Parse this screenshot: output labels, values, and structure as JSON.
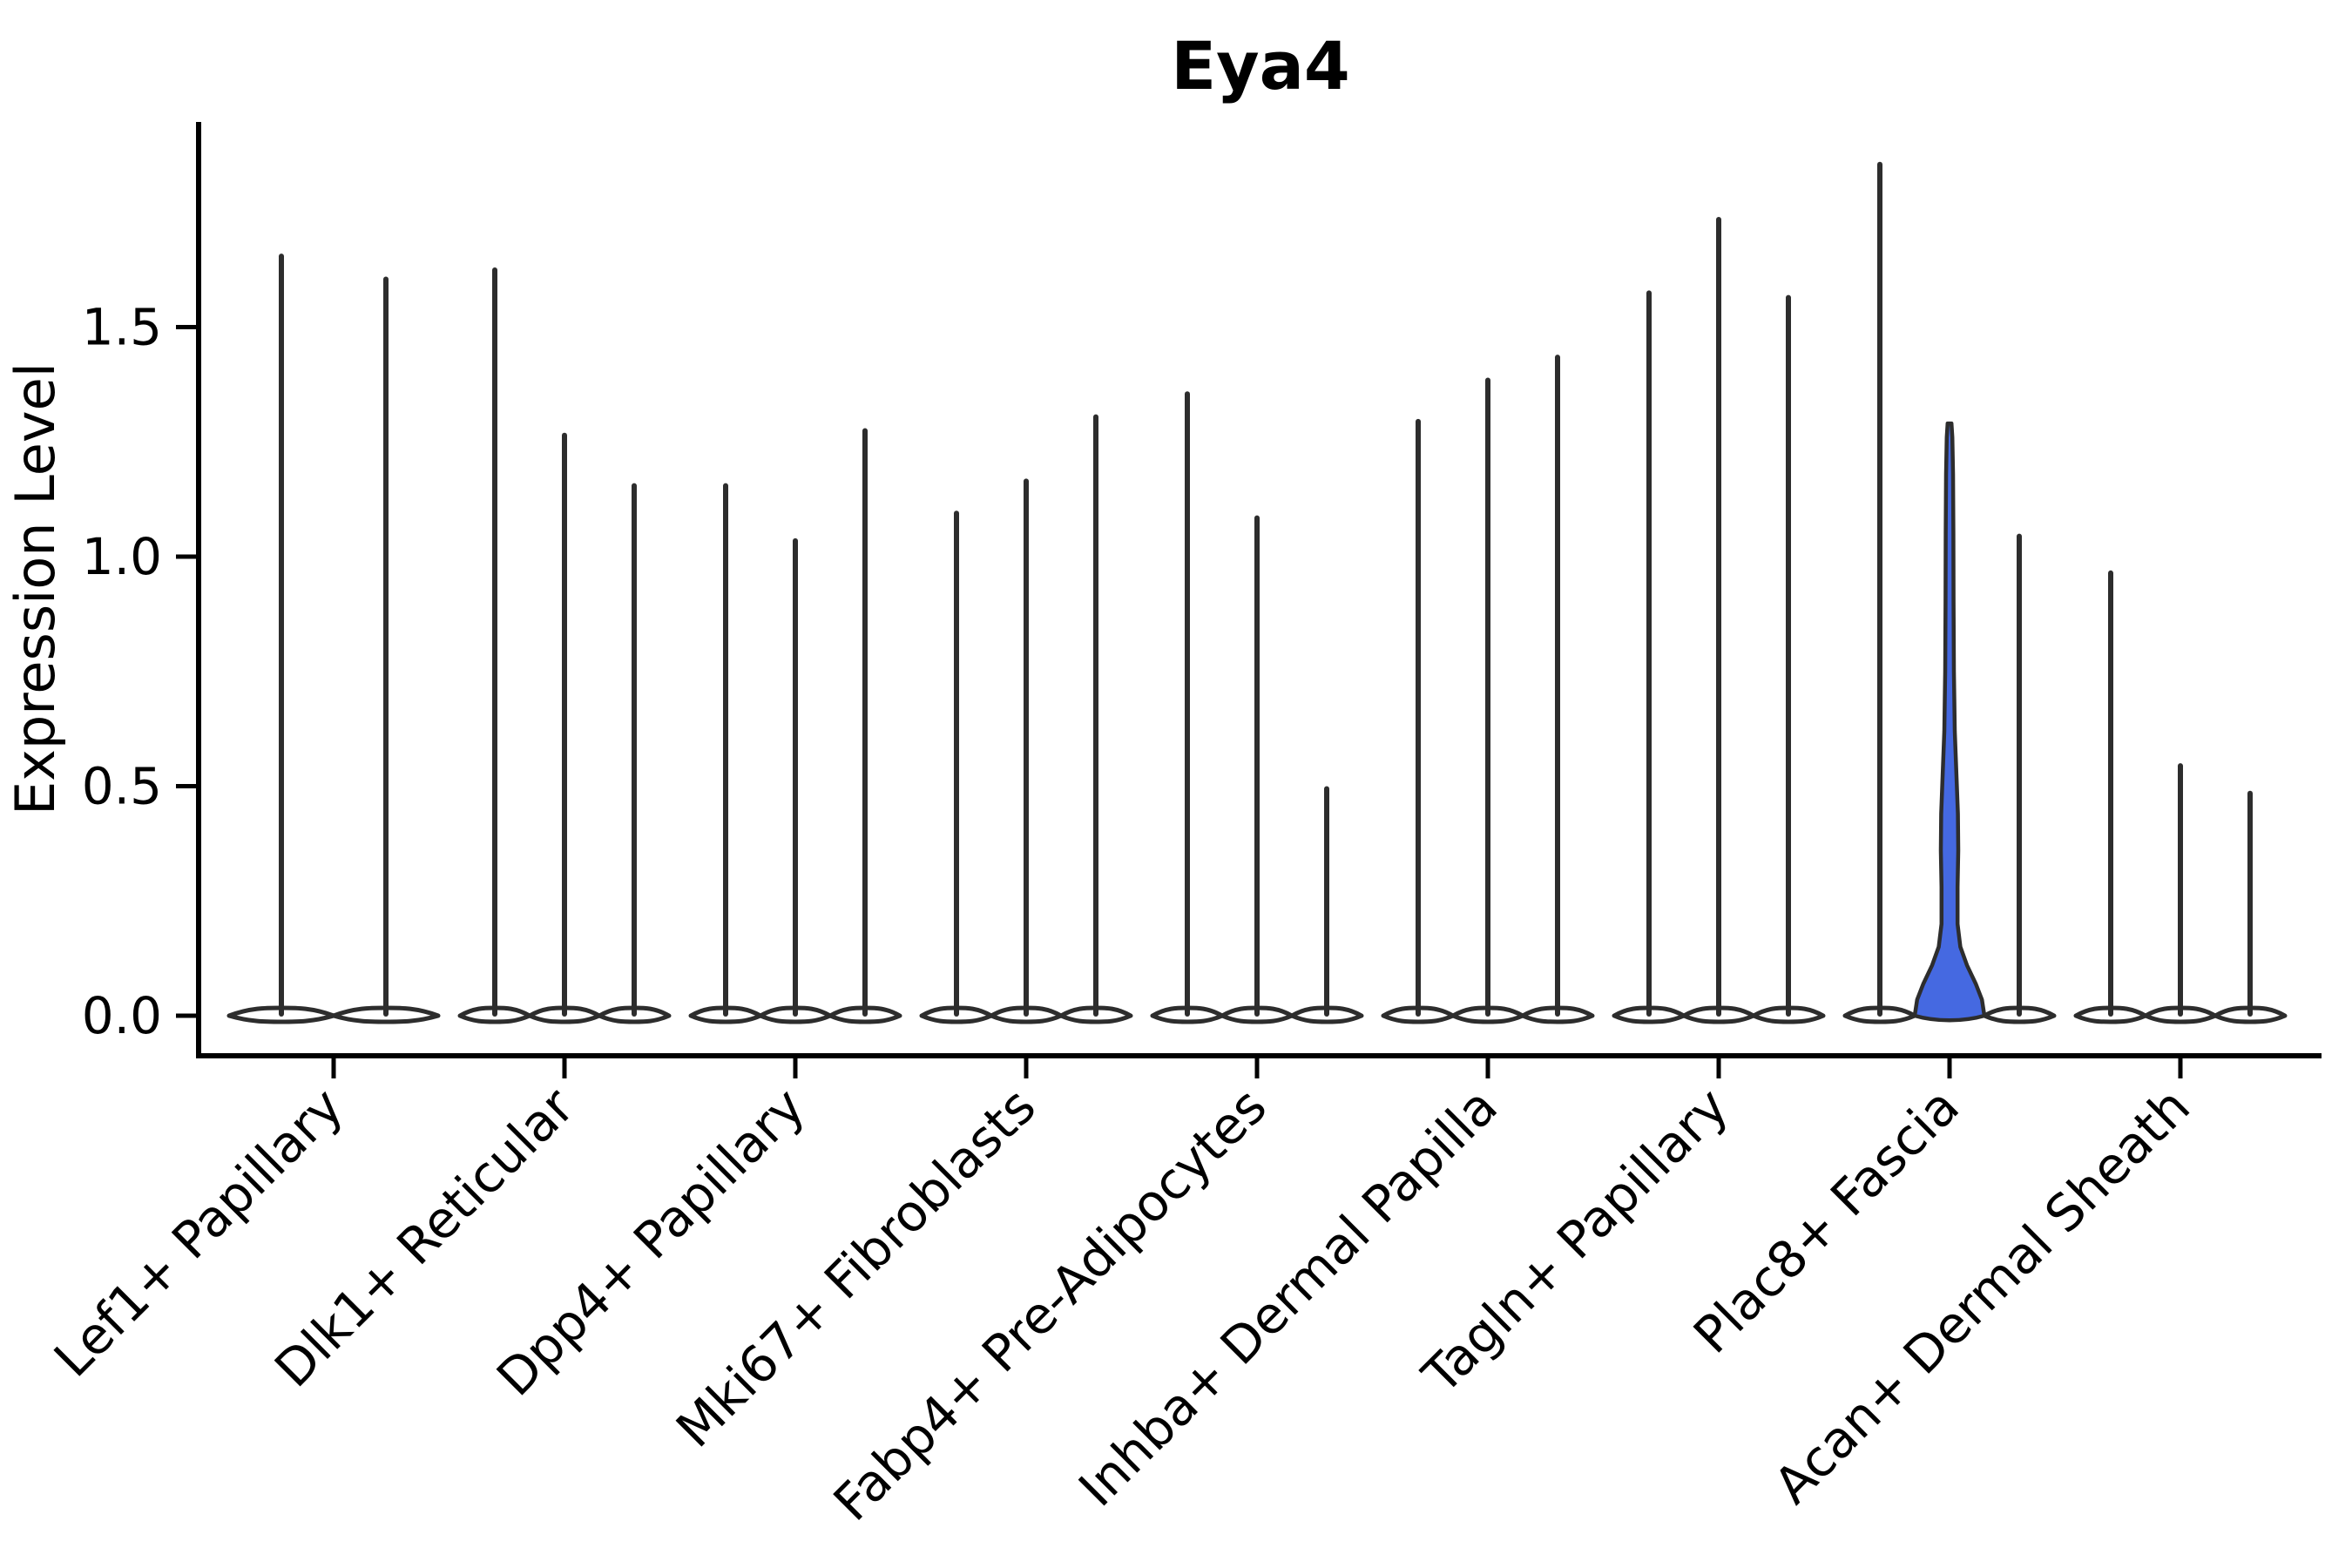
{
  "title": "Eya4",
  "chart_data": {
    "type": "violin",
    "title": "Eya4",
    "xlabel": "",
    "ylabel": "Expression Level",
    "yticks": [
      0.0,
      0.5,
      1.0,
      1.5
    ],
    "ylim": [
      -0.09,
      1.95
    ],
    "grid": false,
    "legend_position": "none",
    "outline_color": "#2d2d2d",
    "highlight_fill_color": "#4569e1",
    "normal_fill_color": "#ffffff",
    "categories": [
      "Lef1+ Papillary",
      "Dlk1+ Reticular",
      "Dpp4+ Papillary",
      "Mki67+ Fibroblasts",
      "Fabp4+ Pre-Adipocytes",
      "Inhba+ Dermal Papilla",
      "Tagln+ Papillary",
      "Plac8+ Fascia",
      "Acan+ Dermal Sheath"
    ],
    "groups": [
      {
        "category": "Lef1+ Papillary",
        "violins": [
          {
            "max": 1.66
          },
          {
            "max": 1.61
          }
        ]
      },
      {
        "category": "Dlk1+ Reticular",
        "violins": [
          {
            "max": 1.63
          },
          {
            "max": 1.27
          },
          {
            "max": 1.16
          }
        ]
      },
      {
        "category": "Dpp4+ Papillary",
        "violins": [
          {
            "max": 1.16
          },
          {
            "max": 1.04
          },
          {
            "max": 1.28
          }
        ]
      },
      {
        "category": "Mki67+ Fibroblasts",
        "violins": [
          {
            "max": 1.1
          },
          {
            "max": 1.17
          },
          {
            "max": 1.31
          }
        ]
      },
      {
        "category": "Fabp4+ Pre-Adipocytes",
        "violins": [
          {
            "max": 1.36
          },
          {
            "max": 1.09
          },
          {
            "max": 0.5
          }
        ]
      },
      {
        "category": "Inhba+ Dermal Papilla",
        "violins": [
          {
            "max": 1.3
          },
          {
            "max": 1.39
          },
          {
            "max": 1.44
          }
        ]
      },
      {
        "category": "Tagln+ Papillary",
        "violins": [
          {
            "max": 1.58
          },
          {
            "max": 1.74
          },
          {
            "max": 1.57
          }
        ]
      },
      {
        "category": "Plac8+ Fascia",
        "violins": [
          {
            "max": 1.86
          },
          {
            "max": 1.29,
            "highlight": true
          },
          {
            "max": 1.05
          }
        ]
      },
      {
        "category": "Acan+ Dermal Sheath",
        "violins": [
          {
            "max": 0.97
          },
          {
            "max": 0.55
          },
          {
            "max": 0.49
          }
        ]
      }
    ],
    "highlight_profile": [
      [
        0.0,
        1.0
      ],
      [
        0.035,
        0.93
      ],
      [
        0.07,
        0.75
      ],
      [
        0.11,
        0.5
      ],
      [
        0.15,
        0.31
      ],
      [
        0.2,
        0.23
      ],
      [
        0.28,
        0.23
      ],
      [
        0.36,
        0.25
      ],
      [
        0.44,
        0.24
      ],
      [
        0.52,
        0.2
      ],
      [
        0.62,
        0.15
      ],
      [
        0.75,
        0.125
      ],
      [
        0.9,
        0.115
      ],
      [
        1.05,
        0.11
      ],
      [
        1.18,
        0.1
      ],
      [
        1.26,
        0.08
      ]
    ]
  }
}
